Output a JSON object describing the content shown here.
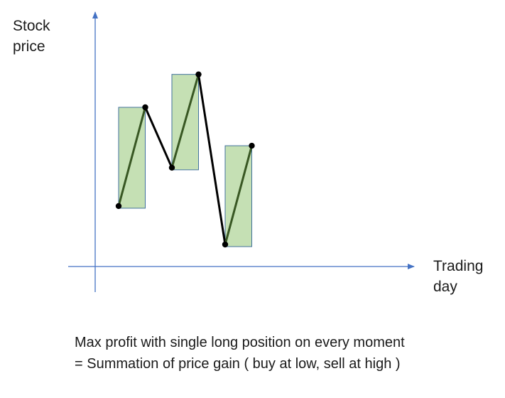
{
  "y_axis_title": [
    "Stock",
    "price"
  ],
  "x_axis_title": [
    "Trading",
    "day"
  ],
  "caption": [
    "Max profit with single long position on every moment",
    "= Summation of price gain ( buy at low, sell at high )"
  ],
  "colors": {
    "axis": "#4472c4",
    "box_fill": "#c5e0b4",
    "box_stroke": "#41719c",
    "rise_line": "#385723",
    "fall_line": "#000000",
    "point": "#000000"
  },
  "price_path": [
    {
      "day": 1,
      "price": 2.2
    },
    {
      "day": 2,
      "price": 5.8
    },
    {
      "day": 3,
      "price": 3.6
    },
    {
      "day": 4,
      "price": 7.0
    },
    {
      "day": 5,
      "price": 0.8
    },
    {
      "day": 6,
      "price": 4.4
    }
  ],
  "gain_segments": [
    {
      "from_day": 1,
      "to_day": 2
    },
    {
      "from_day": 3,
      "to_day": 4
    },
    {
      "from_day": 5,
      "to_day": 6
    }
  ]
}
